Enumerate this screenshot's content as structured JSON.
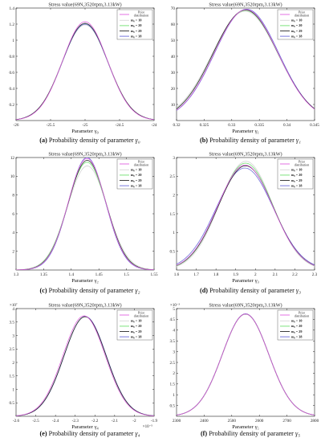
{
  "colors": {
    "prior": "#e060e0",
    "m10": "#d8d8d8",
    "m20": "#6fe06f",
    "m29": "#2a2a2a",
    "m38": "#6a6ad8",
    "axis": "#222222"
  },
  "legend_labels": {
    "prior": "Prior distribution",
    "m10": "m₀ = 10",
    "m20": "m₀ = 20",
    "m29": "m₀ = 29",
    "m38": "m₀ = 38"
  },
  "chart_data": [
    {
      "id": "a",
      "type": "line",
      "title": "Stress value(69N,3520rpm,3.13kW)",
      "xlabel": "Parameter γ₀",
      "caption_tag": "(a)",
      "caption_text": "Probability density of parameter",
      "caption_symbol": "γ₀",
      "xlim": [
        -26,
        -24
      ],
      "ylim": [
        0,
        1.4
      ],
      "xticks": [
        -26,
        -25.5,
        -25,
        -24.5,
        -24
      ],
      "xtick_labels": [
        "-26",
        "-25.5",
        "-25",
        "-24.5",
        "-24"
      ],
      "yticks": [
        0.2,
        0.4,
        0.6,
        0.8,
        1,
        1.2,
        1.4
      ],
      "ytick_labels": [
        "0.2",
        "0.4",
        "0.6",
        "0.8",
        "1",
        "1.2",
        "1.4"
      ],
      "exponent": "",
      "legend": "top-right",
      "series": [
        {
          "key": "prior",
          "mean": -25.0,
          "sd": 0.325,
          "peak": 1.23
        },
        {
          "key": "m10",
          "mean": -25.0,
          "sd": 0.335,
          "peak": 1.19
        },
        {
          "key": "m20",
          "mean": -25.0,
          "sd": 0.33,
          "peak": 1.2
        },
        {
          "key": "m29",
          "mean": -25.0,
          "sd": 0.33,
          "peak": 1.21
        },
        {
          "key": "m38",
          "mean": -25.0,
          "sd": 0.33,
          "peak": 1.2
        }
      ]
    },
    {
      "id": "b",
      "type": "line",
      "title": "Stress value(69N,3520rpm,3.13kW)",
      "xlabel": "Parameter γ₁",
      "caption_tag": "(b)",
      "caption_text": "Probability density of parameter",
      "caption_symbol": "γ₁",
      "xlim": [
        0.32,
        0.345
      ],
      "ylim": [
        0,
        70
      ],
      "xticks": [
        0.32,
        0.325,
        0.33,
        0.335,
        0.34,
        0.345
      ],
      "xtick_labels": [
        "0.32",
        "0.325",
        "0.33",
        "0.335",
        "0.34",
        "0.345"
      ],
      "yticks": [
        10,
        20,
        30,
        40,
        50,
        60,
        70
      ],
      "ytick_labels": [
        "10",
        "20",
        "30",
        "40",
        "50",
        "60",
        "70"
      ],
      "exponent": "",
      "legend": "top-right",
      "series": [
        {
          "key": "prior",
          "mean": 0.3326,
          "sd": 0.0058,
          "peak": 69
        },
        {
          "key": "m10",
          "mean": 0.3324,
          "sd": 0.006,
          "peak": 68
        },
        {
          "key": "m20",
          "mean": 0.3325,
          "sd": 0.0059,
          "peak": 68.5
        },
        {
          "key": "m29",
          "mean": 0.3325,
          "sd": 0.0059,
          "peak": 68.8
        },
        {
          "key": "m38",
          "mean": 0.3327,
          "sd": 0.0058,
          "peak": 69.3
        }
      ]
    },
    {
      "id": "c",
      "type": "line",
      "title": "Stress value(69N,3520rpm,3.13kW)",
      "xlabel": "Parameter γ₂",
      "caption_tag": "(c)",
      "caption_text": "Probability density of parameter",
      "caption_symbol": "γ₂",
      "xlim": [
        1.3,
        1.55
      ],
      "ylim": [
        0,
        12
      ],
      "xticks": [
        1.3,
        1.35,
        1.4,
        1.45,
        1.5,
        1.55
      ],
      "xtick_labels": [
        "1.3",
        "1.35",
        "1.4",
        "1.45",
        "1.5",
        "1.55"
      ],
      "yticks": [
        2,
        4,
        6,
        8,
        10,
        12
      ],
      "ytick_labels": [
        "2",
        "4",
        "6",
        "8",
        "10",
        "12"
      ],
      "exponent": "",
      "legend": "top-right",
      "series": [
        {
          "key": "prior",
          "mean": 1.4285,
          "sd": 0.034,
          "peak": 11.9
        },
        {
          "key": "m10",
          "mean": 1.429,
          "sd": 0.036,
          "peak": 11.1
        },
        {
          "key": "m20",
          "mean": 1.4285,
          "sd": 0.035,
          "peak": 11.5
        },
        {
          "key": "m29",
          "mean": 1.4288,
          "sd": 0.0345,
          "peak": 11.7
        },
        {
          "key": "m38",
          "mean": 1.4285,
          "sd": 0.0335,
          "peak": 12.0
        }
      ]
    },
    {
      "id": "d",
      "type": "line",
      "title": "Stress value(69N,3520rpm,3.13kW)",
      "xlabel": "Parameter γ₃",
      "caption_tag": "(d)",
      "caption_text": "Probability density of parameter",
      "caption_symbol": "γ₃",
      "xlim": [
        1.6,
        2.3
      ],
      "ylim": [
        0,
        3
      ],
      "xticks": [
        1.6,
        1.7,
        1.8,
        1.9,
        2.0,
        2.1,
        2.2,
        2.3
      ],
      "xtick_labels": [
        "1.6",
        "1.7",
        "1.8",
        "1.9",
        "2",
        "2.1",
        "2.2",
        "2.3"
      ],
      "yticks": [
        0.5,
        1,
        1.5,
        2,
        2.5,
        3
      ],
      "ytick_labels": [
        "0.5",
        "1",
        "1.5",
        "2",
        "2.5",
        "3"
      ],
      "exponent": "",
      "legend": "top-right",
      "series": [
        {
          "key": "prior",
          "mean": 1.948,
          "sd": 0.14,
          "peak": 2.8
        },
        {
          "key": "m10",
          "mean": 1.952,
          "sd": 0.135,
          "peak": 2.9
        },
        {
          "key": "m20",
          "mean": 1.95,
          "sd": 0.138,
          "peak": 2.85
        },
        {
          "key": "m29",
          "mean": 1.95,
          "sd": 0.14,
          "peak": 2.78
        },
        {
          "key": "m38",
          "mean": 1.946,
          "sd": 0.145,
          "peak": 2.72
        }
      ]
    },
    {
      "id": "e",
      "type": "line",
      "title": "Stress value(69N,3520rpm,3.13kW)",
      "xlabel": "Parameter γ₄",
      "caption_tag": "(e)",
      "caption_text": "Probability density of parameter",
      "caption_symbol": "γ₄",
      "xlim": [
        -2.6,
        -1.9
      ],
      "ylim": [
        0,
        4
      ],
      "xticks": [
        -2.6,
        -2.5,
        -2.4,
        -2.3,
        -2.2,
        -2.1,
        -2.0,
        -1.9
      ],
      "xtick_labels": [
        "-2.6",
        "-2.5",
        "-2.4",
        "-2.3",
        "-2.2",
        "-2.1",
        "-2",
        "-1.9"
      ],
      "yticks": [
        0.5,
        1,
        1.5,
        2,
        2.5,
        3,
        3.5,
        4
      ],
      "ytick_labels": [
        "0.5",
        "1",
        "1.5",
        "2",
        "2.5",
        "3",
        "3.5",
        "4"
      ],
      "exponent": "×10⁷",
      "xexponent": "×10⁻⁵",
      "legend": "top-right",
      "series": [
        {
          "key": "prior",
          "mean": -2.255,
          "sd": 0.107,
          "peak": 3.73
        },
        {
          "key": "m10",
          "mean": -2.25,
          "sd": 0.108,
          "peak": 3.69
        },
        {
          "key": "m20",
          "mean": -2.25,
          "sd": 0.107,
          "peak": 3.7
        },
        {
          "key": "m29",
          "mean": -2.25,
          "sd": 0.107,
          "peak": 3.7
        },
        {
          "key": "m38",
          "mean": -2.249,
          "sd": 0.107,
          "peak": 3.71
        }
      ]
    },
    {
      "id": "f",
      "type": "line",
      "title": "Stress value(69N,3520rpm,3.13kW)",
      "xlabel": "Parameter γ₅",
      "caption_tag": "(f)",
      "caption_text": "Probability density of parameter",
      "caption_symbol": "γ₅",
      "xlim": [
        2300,
        2800
      ],
      "ylim": [
        0,
        5
      ],
      "xticks": [
        2300,
        2400,
        2500,
        2600,
        2700,
        2800
      ],
      "xtick_labels": [
        "2300",
        "2400",
        "2500",
        "2600",
        "2700",
        "2800"
      ],
      "yticks": [
        0.5,
        1,
        1.5,
        2,
        2.5,
        3,
        3.5,
        4,
        4.5,
        5
      ],
      "ytick_labels": [
        "0.5",
        "1",
        "1.5",
        "2",
        "2.5",
        "3",
        "3.5",
        "4",
        "4.5",
        "5"
      ],
      "exponent": "×10⁻³",
      "legend": "top-right",
      "series": [
        {
          "key": "prior",
          "mean": 2550,
          "sd": 84,
          "peak": 4.75
        },
        {
          "key": "m10",
          "mean": 2550,
          "sd": 84,
          "peak": 4.74
        },
        {
          "key": "m20",
          "mean": 2550,
          "sd": 84,
          "peak": 4.75
        },
        {
          "key": "m29",
          "mean": 2550,
          "sd": 84,
          "peak": 4.75
        },
        {
          "key": "m38",
          "mean": 2550,
          "sd": 84,
          "peak": 4.76
        }
      ]
    }
  ]
}
